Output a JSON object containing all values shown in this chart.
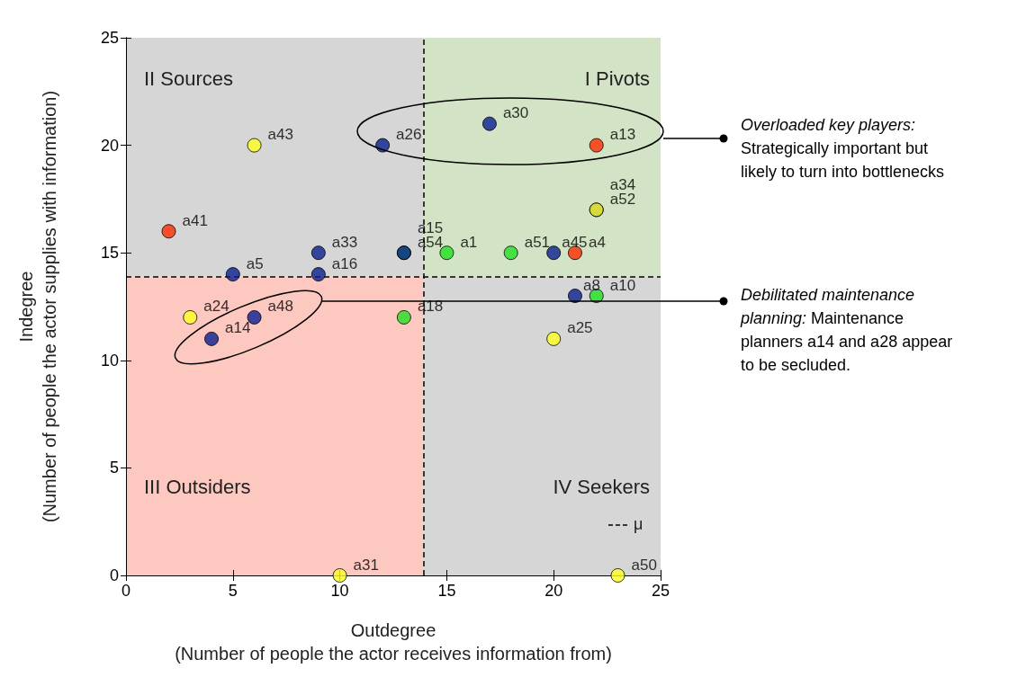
{
  "chart_data": {
    "type": "scatter",
    "xlabel": "Outdegree\n(Number of people the actor receives information from)",
    "ylabel": "Indegree\n(Number of people the actor supplies with information)",
    "x": [
      6,
      12,
      17,
      22,
      22,
      22,
      2,
      9,
      13,
      13,
      15,
      18,
      20,
      21,
      5,
      9,
      21,
      22,
      3,
      6,
      4,
      13,
      20,
      10,
      23
    ],
    "values": [
      20,
      20,
      21,
      20,
      17,
      17,
      16,
      15,
      15,
      15,
      15,
      15,
      15,
      15,
      14,
      14,
      13,
      13,
      12,
      12,
      11,
      12,
      11,
      0,
      0
    ],
    "colors": [
      "#ffff22",
      "#0a1f8f",
      "#0a1f8f",
      "#ff2a00",
      "#0a1f8f",
      "#ffff22",
      "#ff2a00",
      "#0a1f8f",
      "#22e022",
      "#0a1f8f",
      "#22e022",
      "#22e022",
      "#0a1f8f",
      "#ff2a00",
      "#0a1f8f",
      "#0a1f8f",
      "#0a1f8f",
      "#22e022",
      "#ffff22",
      "#0a1f8f",
      "#0a1f8f",
      "#22e022",
      "#ffff22",
      "#ffff22",
      "#ffff22"
    ],
    "value_labels": [
      "a43",
      "a26",
      "a30",
      "a13",
      "a52",
      "a34",
      "a41",
      "a33",
      "a54",
      "a15",
      "a1",
      "a51",
      "a45",
      "a4",
      "a5",
      "a16",
      "a8",
      "a10",
      "a24",
      "a48",
      "a14",
      "a18",
      "a25",
      "a31",
      "a50"
    ],
    "marker": "circle",
    "xlim": [
      0,
      25
    ],
    "ylim": [
      0,
      25
    ],
    "xticks": [
      0,
      5,
      10,
      15,
      20,
      25
    ],
    "yticks": [
      0,
      5,
      10,
      15,
      20,
      25
    ],
    "grid": false,
    "legend": "bottom right",
    "ref_lines": [
      {
        "axis": "x",
        "value": 13.9,
        "label": "μ",
        "line_style": "dashed",
        "color": "#000000"
      },
      {
        "axis": "y",
        "value": 13.9,
        "line_style": "dashed",
        "color": "#000000"
      }
    ],
    "bands": [
      {
        "axis": "y",
        "from": 13.9,
        "to": 25,
        "color": "#d3e3c5"
      }
    ],
    "annotations": [
      "II Sources",
      "I Pivots",
      "III Outsiders",
      "IV Seekers",
      "Overloaded key players:\nStrategically important but\nlikely to turn into bottlenecks",
      "Debilitated maintenance\nplanning: Maintenance\nplanners a14 and a28 appear\nto be secluded."
    ]
  }
}
